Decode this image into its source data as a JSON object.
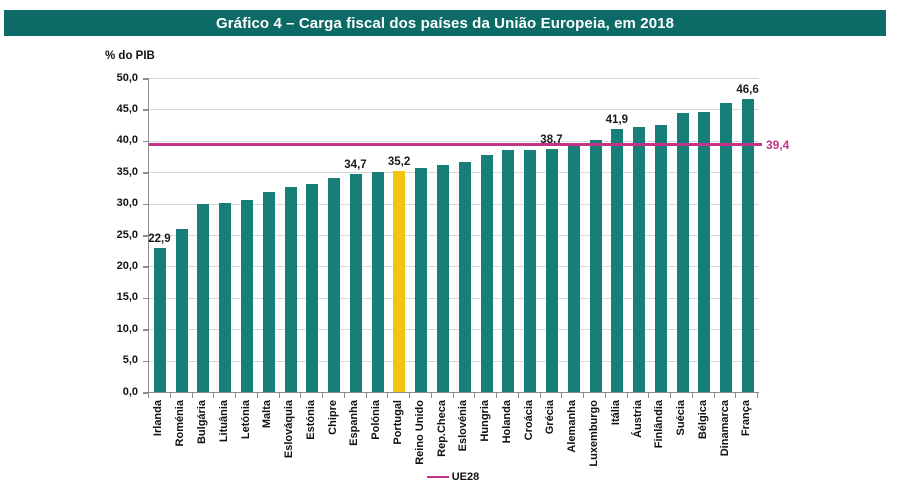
{
  "header": {
    "title": "Gráfico 4 – Carga fiscal dos países da União Europeia, em 2018"
  },
  "colors": {
    "band": "#0C6B67",
    "bar": "#177E78",
    "highlight": "#F2C511",
    "reference": "#C23287",
    "grid": "#D9D9D9",
    "axis": "#8C8C8C"
  },
  "chart_data": {
    "type": "bar",
    "title": "Gráfico 4 – Carga fiscal dos países da União Europeia, em 2018",
    "ylabel": "% do PIB",
    "xlabel": "",
    "ylim": [
      0,
      50
    ],
    "ytick_step": 5,
    "ytick_labels": [
      "50,0",
      "45,0",
      "40,0",
      "35,0",
      "30,0",
      "25,0",
      "20,0",
      "15,0",
      "10,0",
      "5,0",
      "0,0"
    ],
    "grid": true,
    "categories": [
      "Irlanda",
      "Roménia",
      "Bulgária",
      "Lituânia",
      "Letónia",
      "Malta",
      "Eslováquia",
      "Estónia",
      "Chipre",
      "Espanha",
      "Polónia",
      "Portugal",
      "Reino Unido",
      "Rep.Checa",
      "Eslovénia",
      "Hungria",
      "Holanda",
      "Croácia",
      "Grécia",
      "Alemanha",
      "Luxemburgo",
      "Itália",
      "Áustria",
      "Finlândia",
      "Suécia",
      "Bélgica",
      "Dinamarca",
      "França"
    ],
    "values": [
      22.9,
      26.0,
      29.9,
      30.1,
      30.5,
      31.9,
      32.7,
      33.1,
      34.1,
      34.7,
      35.1,
      35.2,
      35.6,
      36.2,
      36.7,
      37.7,
      38.5,
      38.6,
      38.7,
      39.6,
      40.2,
      41.9,
      42.2,
      42.5,
      44.4,
      44.6,
      46.1,
      46.6
    ],
    "data_labels": {
      "Irlanda": "22,9",
      "Espanha": "34,7",
      "Portugal": "35,2",
      "Grécia": "38,7",
      "Itália": "41,9",
      "França": "46,6"
    },
    "highlight_category": "Portugal",
    "reference_line": {
      "name": "UE28",
      "value": 39.4,
      "label": "39,4"
    },
    "legend": {
      "position": "bottom-center",
      "entries": [
        "UE28"
      ]
    }
  }
}
